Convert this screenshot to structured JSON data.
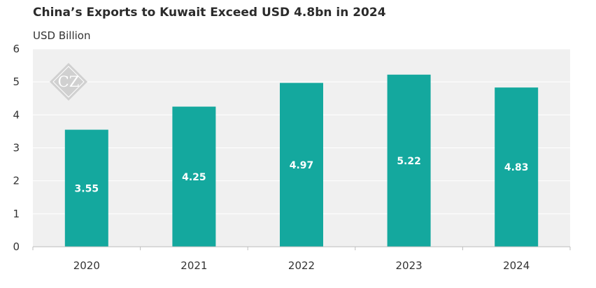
{
  "chart_data": {
    "type": "bar",
    "title": "China’s Exports to Kuwait Exceed USD 4.8bn in 2024",
    "ylabel": "USD Billion",
    "xlabel": "",
    "categories": [
      "2020",
      "2021",
      "2022",
      "2023",
      "2024"
    ],
    "values": [
      3.55,
      4.25,
      4.97,
      5.22,
      4.83
    ],
    "value_labels": [
      "3.55",
      "4.25",
      "4.97",
      "5.22",
      "4.83"
    ],
    "ylim": [
      0,
      6
    ],
    "yticks": [
      "0",
      "1",
      "2",
      "3",
      "4",
      "5",
      "6"
    ],
    "grid": true,
    "legend": "none"
  },
  "colors": {
    "bar": "#14a89e",
    "plot_background": "#f0f0f0",
    "grid": "#ffffff",
    "axis": "#bdbdbd",
    "watermark": "#d0d0d0"
  },
  "watermark": {
    "text": "CZ"
  }
}
